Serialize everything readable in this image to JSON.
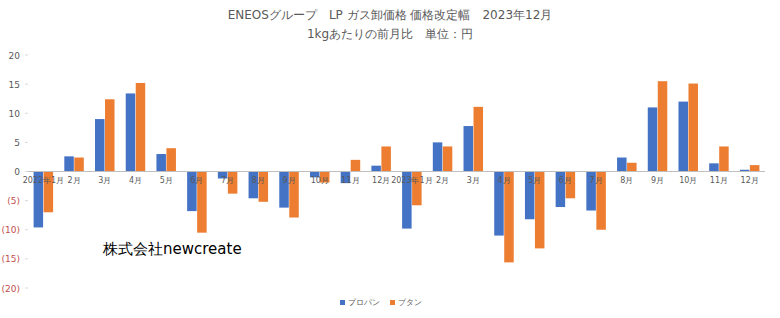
{
  "chart_data": {
    "type": "bar",
    "title": "ENEOSグループ　LP ガス卸価格 価格改定幅　2023年12月",
    "subtitle": "1kgあたりの前月比　単位：円",
    "annotations": [
      "株式会社newcreate"
    ],
    "categories": [
      "2022年1月",
      "2月",
      "3月",
      "4月",
      "5月",
      "6月",
      "7月",
      "8月",
      "9月",
      "10月",
      "11月",
      "12月",
      "2023年1月",
      "2月",
      "3月",
      "4月",
      "5月",
      "6月",
      "7月",
      "8月",
      "9月",
      "10月",
      "11月",
      "12月"
    ],
    "series": [
      {
        "name": "プロパン",
        "color": "#4472c4",
        "values": [
          -9.6,
          2.6,
          9.0,
          13.4,
          3.0,
          -6.8,
          -1.2,
          -4.6,
          -6.2,
          -1.0,
          -2.0,
          1.0,
          -9.8,
          5.0,
          7.8,
          -11.0,
          -8.2,
          -6.1,
          -6.7,
          2.4,
          11.0,
          12.0,
          1.4,
          0.3
        ]
      },
      {
        "name": "ブタン",
        "color": "#ed7d31",
        "values": [
          -7.0,
          2.4,
          12.4,
          15.2,
          4.0,
          -10.5,
          -3.8,
          -5.2,
          -7.9,
          -1.9,
          2.0,
          4.3,
          -5.8,
          4.3,
          11.1,
          -15.6,
          -13.2,
          -4.6,
          -10.0,
          1.5,
          15.5,
          15.1,
          4.3,
          1.1
        ]
      }
    ],
    "ylim": [
      -20,
      20
    ],
    "yticks": [
      {
        "value": -20,
        "label": "(20)"
      },
      {
        "value": -15,
        "label": "(15)"
      },
      {
        "value": -10,
        "label": "(10)"
      },
      {
        "value": -5,
        "label": "(5)"
      },
      0,
      5,
      10,
      15,
      20
    ],
    "grid": false,
    "legend": "bottom"
  }
}
